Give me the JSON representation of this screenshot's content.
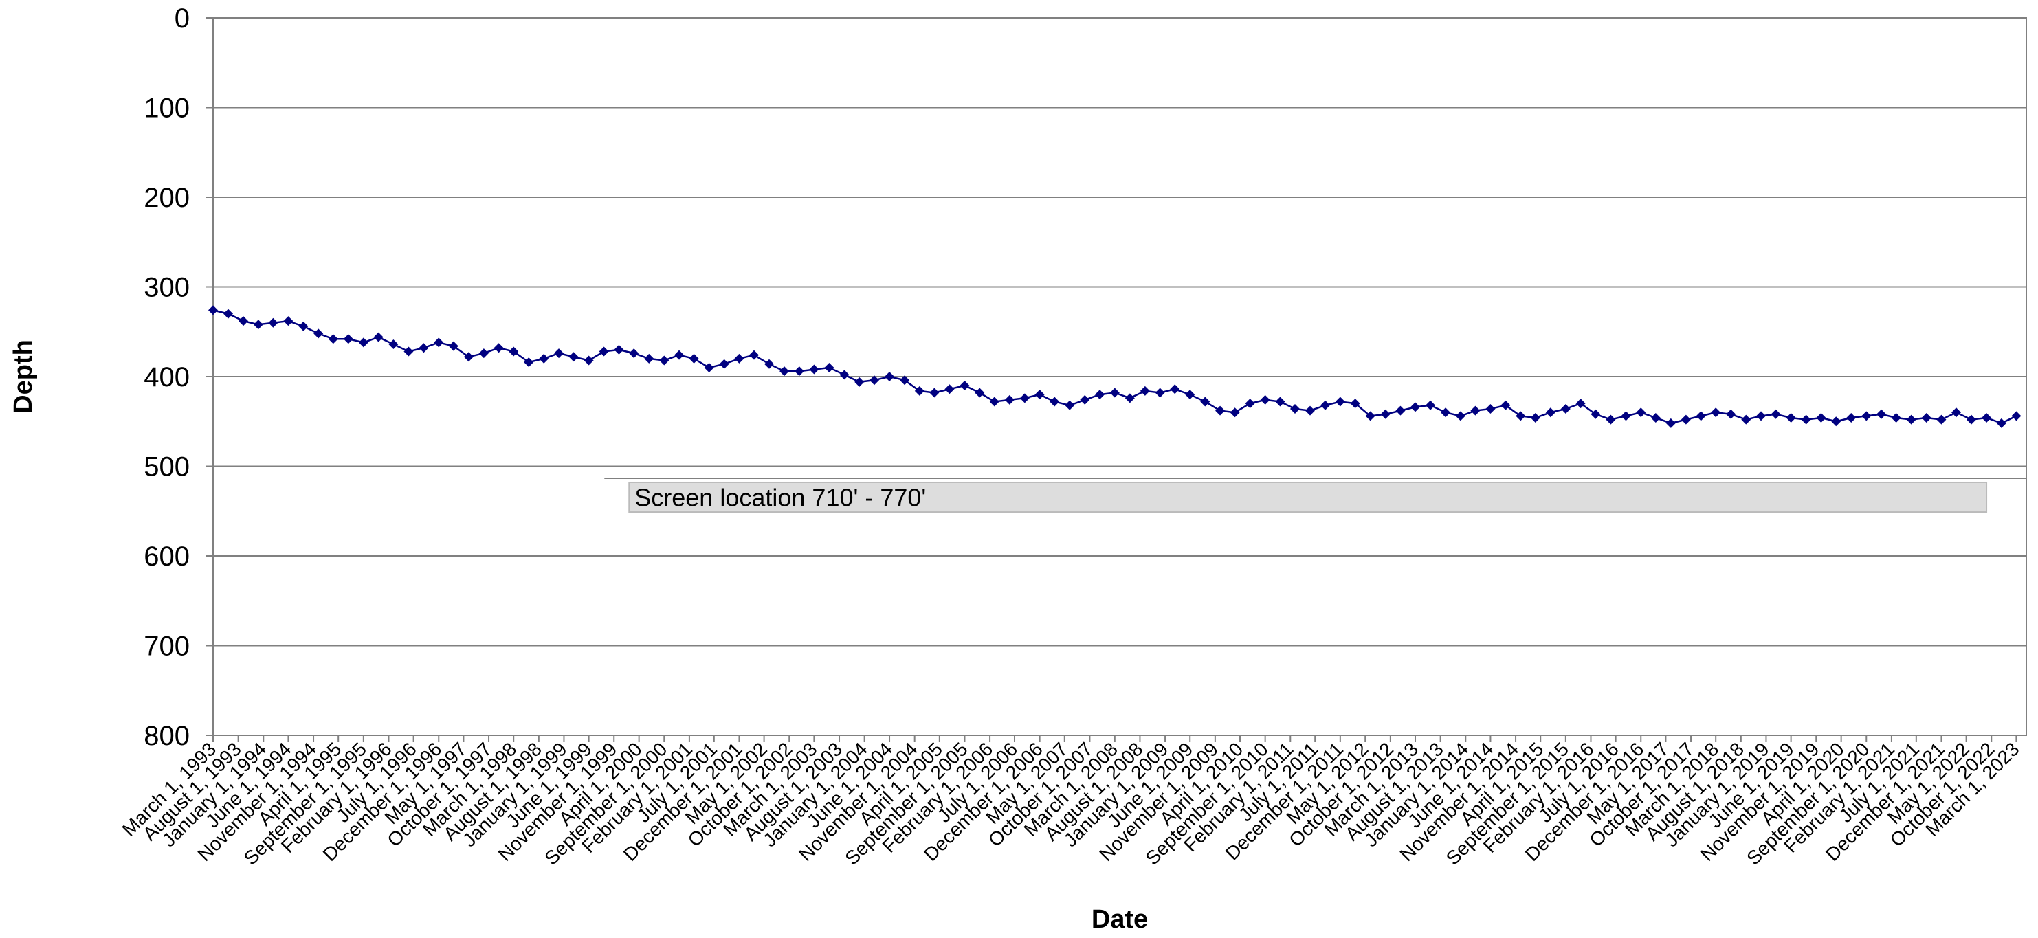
{
  "chart_data": {
    "type": "line",
    "xlabel": "Date",
    "ylabel": "Depth",
    "y_inverted": true,
    "ylim": [
      0,
      800
    ],
    "yticks": [
      0,
      100,
      200,
      300,
      400,
      500,
      600,
      700,
      800
    ],
    "xlim": [
      "1993-03-01",
      "2023-05-01"
    ],
    "grid": "horizontal",
    "legend": "none",
    "series_color": "#000080",
    "marker": "diamond",
    "xtick_labels": [
      "March 1, 1993",
      "August 1, 1993",
      "January 1, 1994",
      "June 1, 1994",
      "November 1, 1994",
      "April 1, 1995",
      "September 1, 1995",
      "February 1, 1996",
      "July 1, 1996",
      "December 1, 1996",
      "May 1, 1997",
      "October 1, 1997",
      "March 1, 1998",
      "August 1, 1998",
      "January 1, 1999",
      "June 1, 1999",
      "November 1, 1999",
      "April 1, 2000",
      "September 1, 2000",
      "February 1, 2001",
      "July 1, 2001",
      "December 1, 2001",
      "May 1, 2002",
      "October 1, 2002",
      "March 1, 2003",
      "August 1, 2003",
      "January 1, 2004",
      "June 1, 2004",
      "November 1, 2004",
      "April 1, 2005",
      "September 1, 2005",
      "February 1, 2006",
      "July 1, 2006",
      "December 1, 2006",
      "May 1, 2007",
      "October 1, 2007",
      "March 1, 2008",
      "August 1, 2008",
      "January 1, 2009",
      "June 1, 2009",
      "November 1, 2009",
      "April 1, 2010",
      "September 1, 2010",
      "February 1, 2011",
      "July 1, 2011",
      "December 1, 2011",
      "May 1, 2012",
      "October 1, 2012",
      "March 1, 2013",
      "August 1, 2013",
      "January 1, 2014",
      "June 1, 2014",
      "November 1, 2014",
      "April 1, 2015",
      "September 1, 2015",
      "February 1, 2016",
      "July 1, 2016",
      "December 1, 2016",
      "May 1, 2017",
      "October 1, 2017",
      "March 1, 2018",
      "August 1, 2018",
      "January 1, 2019",
      "June 1, 2019",
      "November 1, 2019",
      "April 1, 2020",
      "September 1, 2020",
      "February 1, 2021",
      "July 1, 2021",
      "December 1, 2021",
      "May 1, 2022",
      "October 1, 2022",
      "March 1, 2023"
    ],
    "annotation": {
      "text": "Screen location 710' - 770'",
      "x_start": "2000-02-01",
      "x_end": "2022-09-01",
      "depth_top": 518,
      "depth_bottom": 551
    },
    "series": [
      {
        "x": [
          "1993-03-01",
          "1993-06-01",
          "1993-09-01",
          "1993-12-01",
          "1994-03-01",
          "1994-06-01",
          "1994-09-01",
          "1994-12-01",
          "1995-03-01",
          "1995-06-01",
          "1995-09-01",
          "1995-12-01",
          "1996-03-01",
          "1996-06-01",
          "1996-09-01",
          "1996-12-01",
          "1997-03-01",
          "1997-06-01",
          "1997-09-01",
          "1997-12-01",
          "1998-03-01",
          "1998-06-01",
          "1998-09-01",
          "1998-12-01",
          "1999-03-01",
          "1999-06-01",
          "1999-09-01",
          "1999-12-01",
          "2000-03-01",
          "2000-06-01",
          "2000-09-01",
          "2000-12-01",
          "2001-03-01",
          "2001-06-01",
          "2001-09-01",
          "2001-12-01",
          "2002-03-01",
          "2002-06-01",
          "2002-09-01",
          "2002-12-01",
          "2003-03-01",
          "2003-06-01",
          "2003-09-01",
          "2003-12-01",
          "2004-03-01",
          "2004-06-01",
          "2004-09-01",
          "2004-12-01",
          "2005-03-01",
          "2005-06-01",
          "2005-09-01",
          "2005-12-01",
          "2006-03-01",
          "2006-06-01",
          "2006-09-01",
          "2006-12-01",
          "2007-03-01",
          "2007-06-01",
          "2007-09-01",
          "2007-12-01",
          "2008-03-01",
          "2008-06-01",
          "2008-09-01",
          "2008-12-01",
          "2009-03-01",
          "2009-06-01",
          "2009-09-01",
          "2009-12-01",
          "2010-03-01",
          "2010-06-01",
          "2010-09-01",
          "2010-12-01",
          "2011-03-01",
          "2011-06-01",
          "2011-09-01",
          "2011-12-01",
          "2012-03-01",
          "2012-06-01",
          "2012-09-01",
          "2012-12-01",
          "2013-03-01",
          "2013-06-01",
          "2013-09-01",
          "2013-12-01",
          "2014-03-01",
          "2014-06-01",
          "2014-09-01",
          "2014-12-01",
          "2015-03-01",
          "2015-06-01",
          "2015-09-01",
          "2015-12-01",
          "2016-03-01",
          "2016-06-01",
          "2016-09-01",
          "2016-12-01",
          "2017-03-01",
          "2017-06-01",
          "2017-09-01",
          "2017-12-01",
          "2018-03-01",
          "2018-06-01",
          "2018-09-01",
          "2018-12-01",
          "2019-03-01",
          "2019-06-01",
          "2019-09-01",
          "2019-12-01",
          "2020-03-01",
          "2020-06-01",
          "2020-09-01",
          "2020-12-01",
          "2021-03-01",
          "2021-06-01",
          "2021-09-01",
          "2021-12-01",
          "2022-03-01",
          "2022-06-01",
          "2022-09-01",
          "2022-12-01",
          "2023-03-01"
        ],
        "y": [
          326,
          330,
          338,
          342,
          340,
          338,
          344,
          352,
          358,
          358,
          362,
          356,
          364,
          372,
          368,
          362,
          366,
          378,
          374,
          368,
          372,
          384,
          380,
          374,
          378,
          382,
          372,
          370,
          374,
          380,
          382,
          376,
          380,
          390,
          386,
          380,
          376,
          386,
          394,
          394,
          392,
          390,
          398,
          406,
          404,
          400,
          404,
          416,
          418,
          414,
          410,
          418,
          428,
          426,
          424,
          420,
          428,
          432,
          426,
          420,
          418,
          424,
          416,
          418,
          414,
          420,
          428,
          438,
          440,
          430,
          426,
          428,
          436,
          438,
          432,
          428,
          430,
          444,
          442,
          438,
          434,
          432,
          440,
          444,
          438,
          436,
          432,
          444,
          446,
          440,
          436,
          430,
          442,
          448,
          444,
          440,
          446,
          452,
          448,
          444,
          440,
          442,
          448,
          444,
          442,
          446,
          448,
          446,
          450,
          446,
          444,
          442,
          446,
          448,
          446,
          448,
          440,
          448,
          446,
          452,
          444
        ]
      }
    ]
  }
}
